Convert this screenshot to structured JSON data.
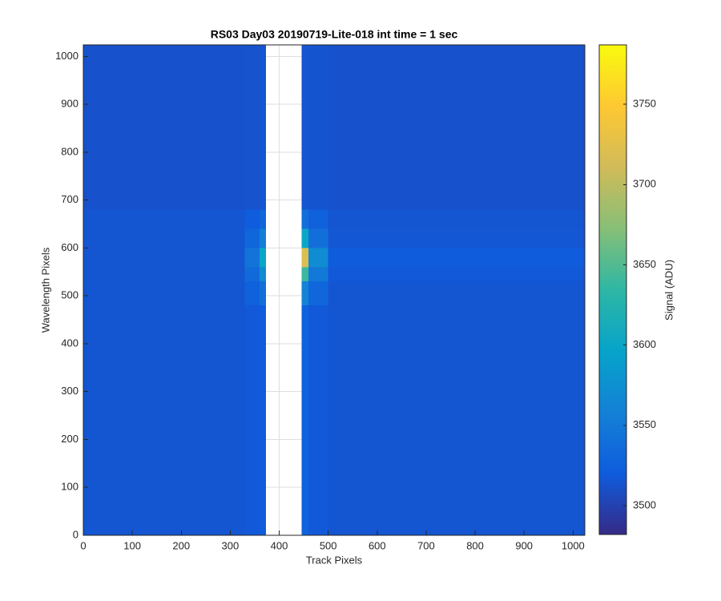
{
  "chart_data": {
    "type": "heatmap",
    "title": "RS03 Day03 20190719-Lite-018 int time = 1 sec",
    "xlabel": "Track Pixels",
    "ylabel": "Wavelength Pixels",
    "colorbar_label": "Signal (ADU)",
    "colormap": "parula",
    "grid": true,
    "xlim": [
      0,
      1024
    ],
    "ylim": [
      0,
      1024
    ],
    "xticks": [
      0,
      100,
      200,
      300,
      400,
      500,
      600,
      700,
      800,
      900,
      1000
    ],
    "yticks": [
      0,
      100,
      200,
      300,
      400,
      500,
      600,
      700,
      800,
      900,
      1000
    ],
    "clim": [
      3482,
      3787
    ],
    "cticks": [
      3500,
      3550,
      3600,
      3650,
      3700,
      3750
    ],
    "x_edges": [
      0,
      330,
      360,
      373,
      446,
      460,
      500,
      1024
    ],
    "y_edges": [
      0,
      480,
      530,
      560,
      600,
      640,
      680,
      1024
    ],
    "z": [
      [
        3515,
        3518,
        3520,
        null,
        3525,
        3518,
        3515
      ],
      [
        3515,
        3525,
        3540,
        null,
        3560,
        3530,
        3515
      ],
      [
        3515,
        3535,
        3570,
        null,
        3640,
        3550,
        3518
      ],
      [
        3515,
        3545,
        3600,
        null,
        3720,
        3570,
        3520
      ],
      [
        3515,
        3530,
        3555,
        null,
        3600,
        3540,
        3516
      ],
      [
        3515,
        3520,
        3530,
        null,
        3540,
        3525,
        3515
      ],
      [
        3512,
        3513,
        3515,
        null,
        3515,
        3514,
        3512
      ]
    ]
  }
}
